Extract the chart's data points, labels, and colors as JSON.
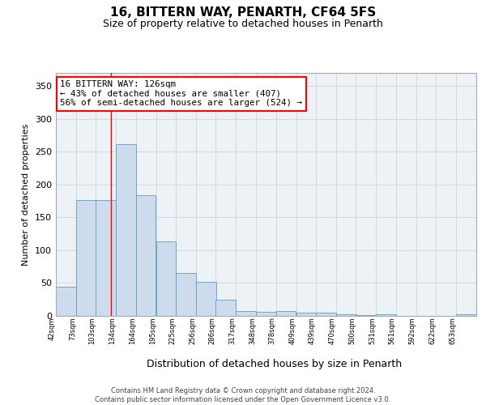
{
  "title": "16, BITTERN WAY, PENARTH, CF64 5FS",
  "subtitle": "Size of property relative to detached houses in Penarth",
  "xlabel": "Distribution of detached houses by size in Penarth",
  "ylabel": "Number of detached properties",
  "footer_line1": "Contains HM Land Registry data © Crown copyright and database right 2024.",
  "footer_line2": "Contains public sector information licensed under the Open Government Licence v3.0.",
  "annotation_line1": "16 BITTERN WAY: 126sqm",
  "annotation_line2": "← 43% of detached houses are smaller (407)",
  "annotation_line3": "56% of semi-detached houses are larger (524) →",
  "bar_color": "#ccdcec",
  "bar_edge_color": "#6699bb",
  "grid_color": "#d0d8e0",
  "bg_color": "#edf2f7",
  "red_line_x": 126,
  "categories": [
    "42sqm",
    "73sqm",
    "103sqm",
    "134sqm",
    "164sqm",
    "195sqm",
    "225sqm",
    "256sqm",
    "286sqm",
    "317sqm",
    "348sqm",
    "378sqm",
    "409sqm",
    "439sqm",
    "470sqm",
    "500sqm",
    "531sqm",
    "561sqm",
    "592sqm",
    "622sqm",
    "653sqm"
  ],
  "bin_edges": [
    42,
    73,
    103,
    134,
    164,
    195,
    225,
    256,
    286,
    317,
    348,
    378,
    409,
    439,
    470,
    500,
    531,
    561,
    592,
    622,
    653,
    684
  ],
  "values": [
    44,
    176,
    176,
    262,
    184,
    114,
    65,
    52,
    25,
    7,
    6,
    8,
    5,
    5,
    3,
    1,
    2,
    0,
    0,
    0,
    3
  ],
  "ylim": [
    0,
    370
  ],
  "yticks": [
    0,
    50,
    100,
    150,
    200,
    250,
    300,
    350
  ]
}
